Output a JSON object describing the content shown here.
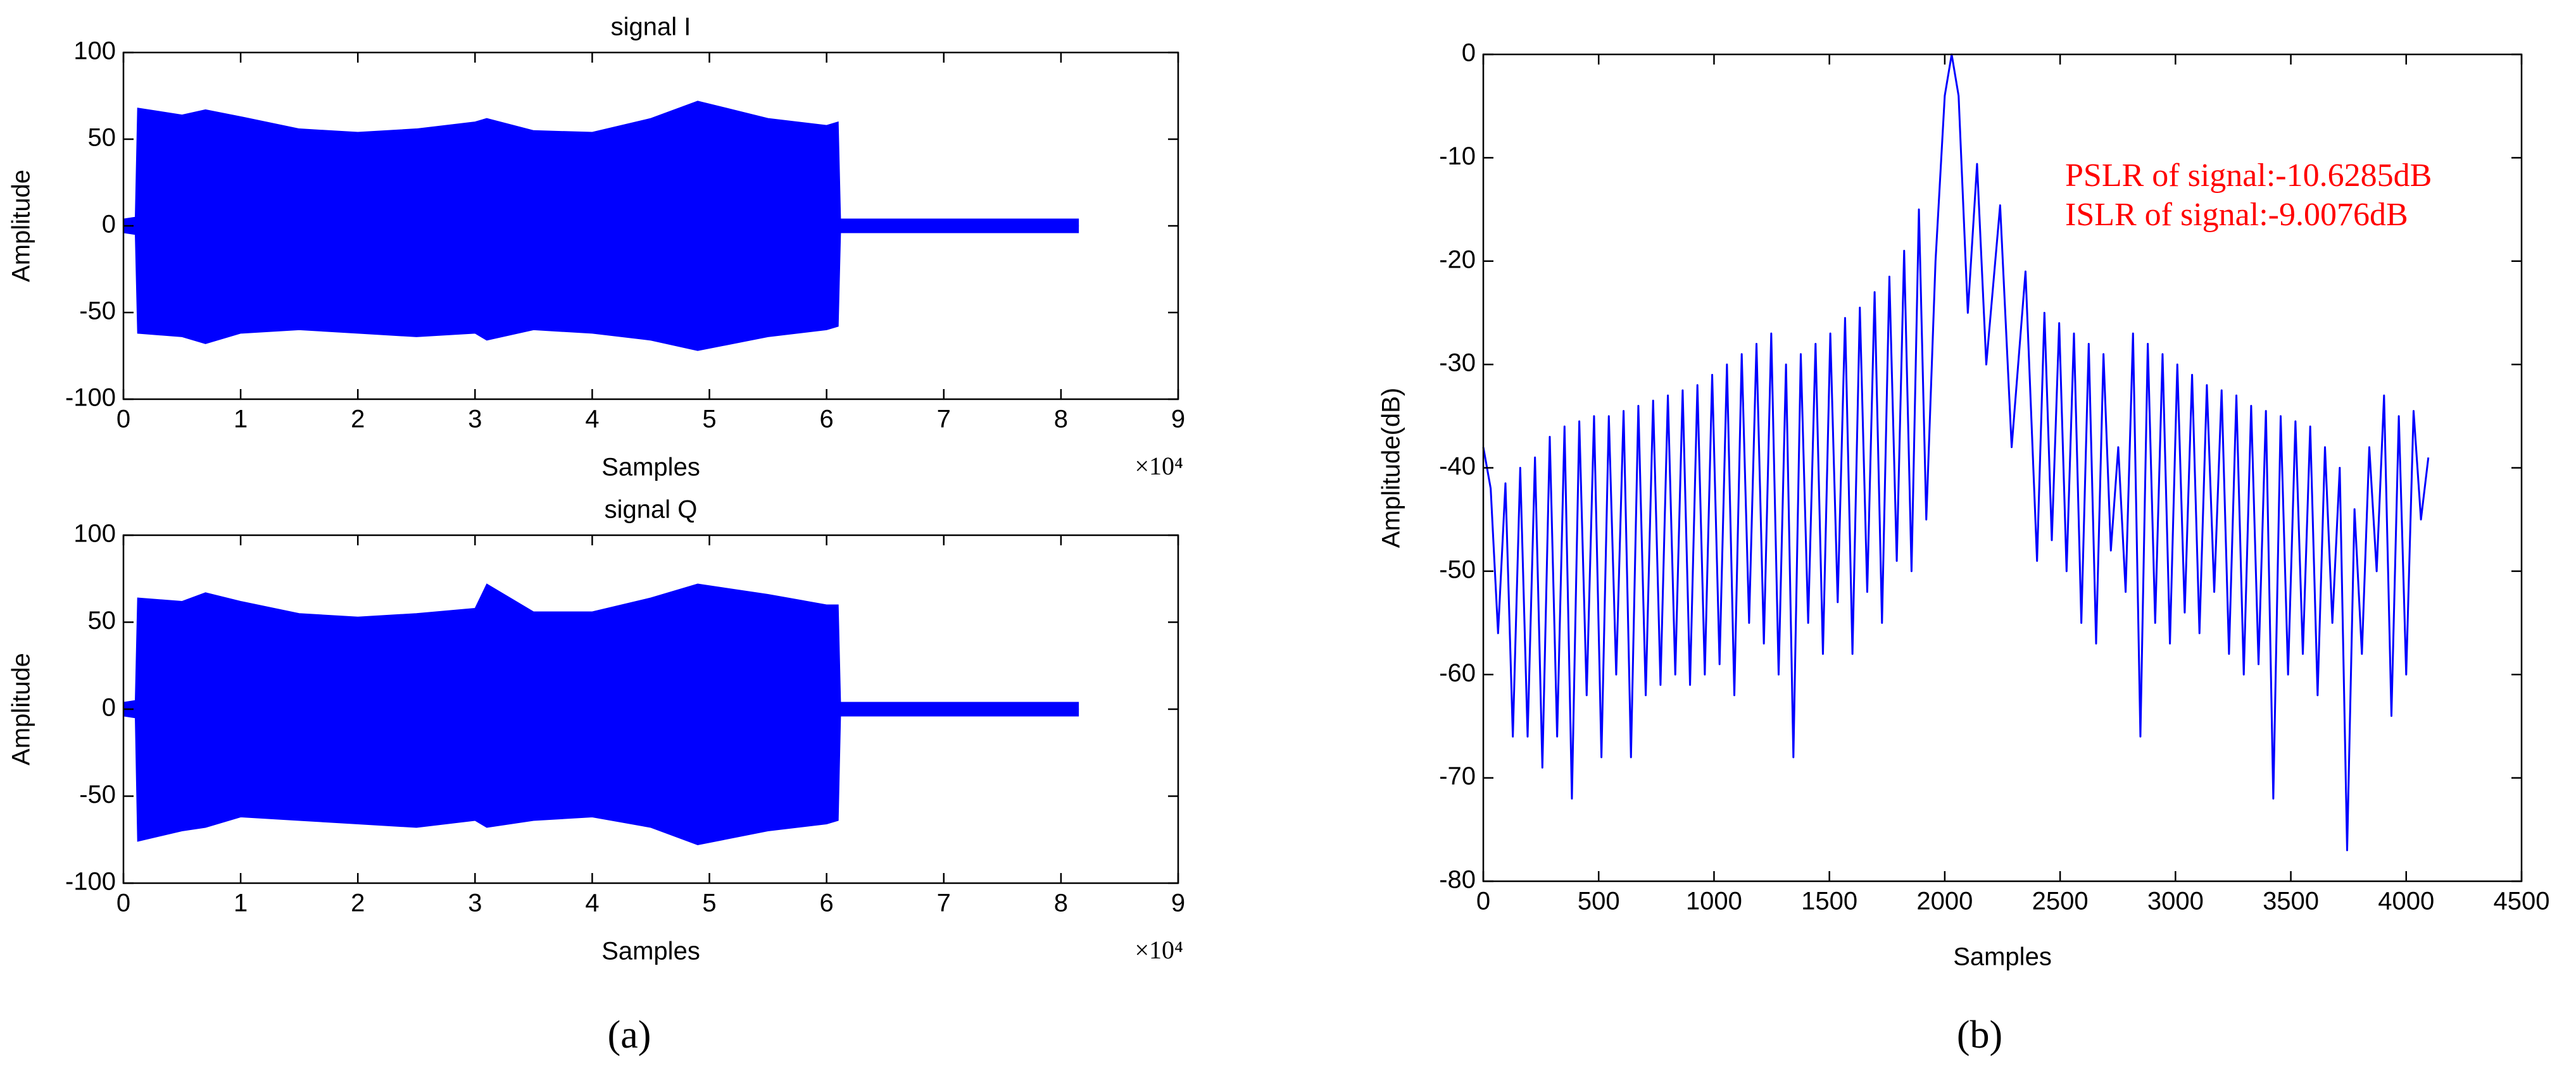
{
  "chart_data": [
    {
      "type": "area",
      "title": "signal I",
      "x_label": "Samples",
      "y_label": "Amplitude",
      "x_multiplier": "×10⁴",
      "x": [
        0,
        0.1,
        0.12,
        0.5,
        0.7,
        1,
        1.5,
        2,
        2.5,
        3,
        3.1,
        3.5,
        4,
        4.5,
        4.9,
        5.5,
        6,
        6.1,
        6.12,
        7,
        8,
        8.15
      ],
      "series": [
        {
          "color": "#0000ff",
          "values": [
            4,
            5,
            68,
            64,
            67,
            63,
            56,
            54,
            56,
            60,
            62,
            55,
            54,
            62,
            72,
            62,
            58,
            60,
            4,
            4,
            4,
            4
          ]
        },
        {
          "color": "#0000ff",
          "values": [
            -4,
            -5,
            -62,
            -64,
            -68,
            -62,
            -60,
            -62,
            -64,
            -62,
            -66,
            -60,
            -62,
            -66,
            -72,
            -64,
            -60,
            -58,
            -4,
            -4,
            -4,
            -4
          ]
        }
      ],
      "xlim": [
        0,
        9
      ],
      "xticks": [
        0,
        1,
        2,
        3,
        4,
        5,
        6,
        7,
        8,
        9
      ],
      "ylim": [
        -100,
        100
      ],
      "yticks": [
        -100,
        -50,
        0,
        50,
        100
      ]
    },
    {
      "type": "area",
      "title": "signal Q",
      "x_label": "Samples",
      "y_label": "Amplitude",
      "x_multiplier": "×10⁴",
      "x": [
        0,
        0.1,
        0.12,
        0.5,
        0.7,
        1,
        1.5,
        2,
        2.5,
        3,
        3.1,
        3.5,
        4,
        4.5,
        4.9,
        5.5,
        6,
        6.1,
        6.12,
        7,
        8,
        8.15
      ],
      "series": [
        {
          "color": "#0000ff",
          "values": [
            4,
            5,
            64,
            62,
            67,
            62,
            55,
            53,
            55,
            58,
            72,
            56,
            56,
            64,
            72,
            66,
            60,
            60,
            4,
            4,
            4,
            4
          ]
        },
        {
          "color": "#0000ff",
          "values": [
            -4,
            -5,
            -76,
            -70,
            -68,
            -62,
            -64,
            -66,
            -68,
            -64,
            -68,
            -64,
            -62,
            -68,
            -78,
            -70,
            -66,
            -64,
            -4,
            -4,
            -4,
            -4
          ]
        }
      ],
      "xlim": [
        0,
        9
      ],
      "xticks": [
        0,
        1,
        2,
        3,
        4,
        5,
        6,
        7,
        8,
        9
      ],
      "ylim": [
        -100,
        100
      ],
      "yticks": [
        -100,
        -50,
        0,
        50,
        100
      ]
    },
    {
      "type": "line",
      "x_label": "Samples",
      "y_label": "Amplitude(dB)",
      "annotations": [
        "PSLR of signal:-10.6285dB",
        "ISLR of signal:-9.0076dB"
      ],
      "x": [
        0,
        32,
        64,
        96,
        128,
        160,
        192,
        224,
        256,
        288,
        320,
        352,
        384,
        416,
        448,
        480,
        512,
        544,
        576,
        608,
        640,
        672,
        704,
        736,
        768,
        800,
        832,
        864,
        896,
        928,
        960,
        992,
        1024,
        1056,
        1088,
        1120,
        1152,
        1184,
        1216,
        1248,
        1280,
        1312,
        1344,
        1376,
        1408,
        1440,
        1472,
        1504,
        1536,
        1568,
        1600,
        1632,
        1664,
        1696,
        1728,
        1760,
        1792,
        1824,
        1856,
        1888,
        1920,
        1960,
        2000,
        2030,
        2060,
        2100,
        2140,
        2180,
        2240,
        2290,
        2350,
        2400,
        2432,
        2464,
        2496,
        2528,
        2560,
        2592,
        2624,
        2656,
        2688,
        2720,
        2752,
        2784,
        2816,
        2848,
        2880,
        2912,
        2944,
        2976,
        3008,
        3040,
        3072,
        3104,
        3136,
        3168,
        3200,
        3232,
        3264,
        3296,
        3328,
        3360,
        3392,
        3424,
        3456,
        3488,
        3520,
        3552,
        3584,
        3616,
        3648,
        3680,
        3712,
        3744,
        3776,
        3808,
        3840,
        3872,
        3904,
        3936,
        3968,
        4000,
        4032,
        4064,
        4096
      ],
      "series": [
        {
          "color": "#0000ff",
          "values": [
            -38,
            -42,
            -56,
            -41.5,
            -66,
            -40,
            -66,
            -39,
            -69,
            -37,
            -66,
            -36,
            -72,
            -35.5,
            -62,
            -35,
            -68,
            -35,
            -60,
            -34.5,
            -68,
            -34,
            -62,
            -33.5,
            -61,
            -33,
            -60,
            -32.5,
            -61,
            -32,
            -60,
            -31,
            -59,
            -30,
            -62,
            -29,
            -55,
            -28,
            -57,
            -27,
            -60,
            -30,
            -68,
            -29,
            -55,
            -28,
            -58,
            -27,
            -53,
            -25.5,
            -58,
            -24.5,
            -52,
            -23,
            -55,
            -21.5,
            -49,
            -19,
            -50,
            -15,
            -45,
            -20,
            -4,
            0,
            -4,
            -25,
            -10.6,
            -30,
            -14.6,
            -38,
            -21,
            -49,
            -25,
            -47,
            -26,
            -50,
            -27,
            -55,
            -28,
            -57,
            -29,
            -48,
            -38,
            -52,
            -27,
            -66,
            -28,
            -55,
            -29,
            -57,
            -30,
            -54,
            -31,
            -56,
            -32,
            -52,
            -32.5,
            -58,
            -33,
            -60,
            -34,
            -59,
            -34.5,
            -72,
            -35,
            -60,
            -35.5,
            -58,
            -36,
            -62,
            -38,
            -55,
            -40,
            -77,
            -44,
            -58,
            -38,
            -50,
            -33,
            -64,
            -35,
            -60,
            -34.5,
            -45,
            -39
          ]
        }
      ],
      "xlim": [
        0,
        4500
      ],
      "xticks": [
        0,
        500,
        1000,
        1500,
        2000,
        2500,
        3000,
        3500,
        4000,
        4500
      ],
      "ylim": [
        -80,
        0
      ],
      "yticks": [
        -80,
        -70,
        -60,
        -50,
        -40,
        -30,
        -20,
        -10,
        0
      ]
    }
  ],
  "panel_labels": [
    "(a)",
    "(b)"
  ]
}
